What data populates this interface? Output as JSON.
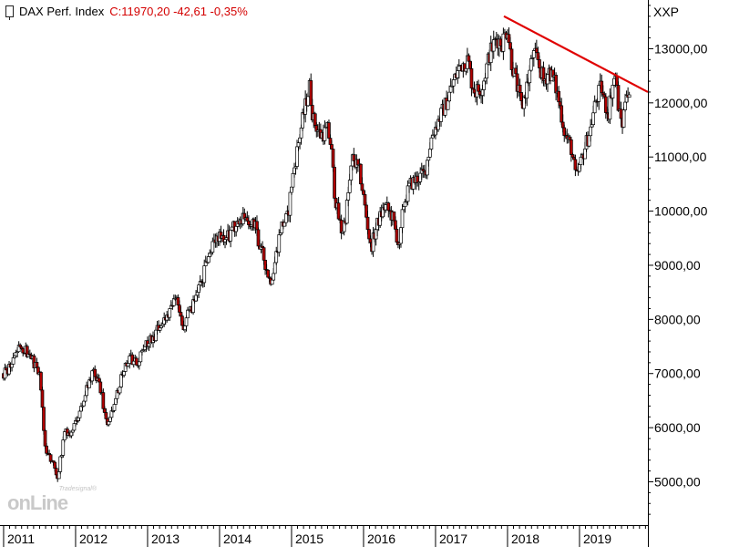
{
  "header": {
    "instrument": "DAX Perf. Index",
    "quote": "C:11970,20 -42,61 -0,35%"
  },
  "axis_unit": "XXP",
  "watermark": {
    "small": "Tradesignal®",
    "big": "onLine"
  },
  "colors": {
    "up_fill": "#ffffff",
    "down_fill": "#b00000",
    "wick": "#000000",
    "trendline": "#e00000",
    "quote_text": "#d40000"
  },
  "chart_data": {
    "type": "candlestick",
    "title": "DAX Perf. Index",
    "x_tick_labels": [
      "2011",
      "2012",
      "2013",
      "2014",
      "2015",
      "2016",
      "2017",
      "2018",
      "2019"
    ],
    "y_tick_labels": [
      "5000,00",
      "6000,00",
      "7000,00",
      "8000,00",
      "9000,00",
      "10000,00",
      "11000,00",
      "12000,00",
      "13000,00"
    ],
    "y_ticks": [
      5000,
      6000,
      7000,
      8000,
      9000,
      10000,
      11000,
      12000,
      13000
    ],
    "xlim": [
      2010.95,
      2019.95
    ],
    "ylim": [
      4200,
      13900
    ],
    "last_close": 11970.2,
    "change": -42.61,
    "change_pct": -0.35,
    "price_path": [
      [
        2011.0,
        7000
      ],
      [
        2011.1,
        7150
      ],
      [
        2011.2,
        7450
      ],
      [
        2011.3,
        7450
      ],
      [
        2011.4,
        7250
      ],
      [
        2011.5,
        7000
      ],
      [
        2011.58,
        5600
      ],
      [
        2011.7,
        5300
      ],
      [
        2011.75,
        5100
      ],
      [
        2011.85,
        5900
      ],
      [
        2011.95,
        5900
      ],
      [
        2012.1,
        6500
      ],
      [
        2012.2,
        6900
      ],
      [
        2012.25,
        7100
      ],
      [
        2012.35,
        6700
      ],
      [
        2012.4,
        6300
      ],
      [
        2012.45,
        6050
      ],
      [
        2012.55,
        6500
      ],
      [
        2012.65,
        7000
      ],
      [
        2012.75,
        7300
      ],
      [
        2012.85,
        7200
      ],
      [
        2013.0,
        7600
      ],
      [
        2013.1,
        7700
      ],
      [
        2013.2,
        8000
      ],
      [
        2013.3,
        8100
      ],
      [
        2013.4,
        8400
      ],
      [
        2013.45,
        8150
      ],
      [
        2013.5,
        7800
      ],
      [
        2013.55,
        8100
      ],
      [
        2013.65,
        8300
      ],
      [
        2013.75,
        8700
      ],
      [
        2013.85,
        9200
      ],
      [
        2013.95,
        9500
      ],
      [
        2014.0,
        9500
      ],
      [
        2014.1,
        9500
      ],
      [
        2014.2,
        9700
      ],
      [
        2014.35,
        9900
      ],
      [
        2014.5,
        9700
      ],
      [
        2014.55,
        9300
      ],
      [
        2014.6,
        9200
      ],
      [
        2014.7,
        8700
      ],
      [
        2014.75,
        8900
      ],
      [
        2014.85,
        9700
      ],
      [
        2014.95,
        9900
      ],
      [
        2015.0,
        10500
      ],
      [
        2015.1,
        11300
      ],
      [
        2015.2,
        12000
      ],
      [
        2015.25,
        12300
      ],
      [
        2015.3,
        11700
      ],
      [
        2015.4,
        11400
      ],
      [
        2015.5,
        11500
      ],
      [
        2015.55,
        11200
      ],
      [
        2015.6,
        10300
      ],
      [
        2015.65,
        9900
      ],
      [
        2015.7,
        9600
      ],
      [
        2015.75,
        9900
      ],
      [
        2015.85,
        11000
      ],
      [
        2015.95,
        10700
      ],
      [
        2016.05,
        9800
      ],
      [
        2016.1,
        9300
      ],
      [
        2016.2,
        9800
      ],
      [
        2016.3,
        10100
      ],
      [
        2016.4,
        9900
      ],
      [
        2016.45,
        9600
      ],
      [
        2016.5,
        9300
      ],
      [
        2016.55,
        10100
      ],
      [
        2016.65,
        10500
      ],
      [
        2016.75,
        10600
      ],
      [
        2016.85,
        10700
      ],
      [
        2016.95,
        11400
      ],
      [
        2017.05,
        11700
      ],
      [
        2017.15,
        12000
      ],
      [
        2017.25,
        12400
      ],
      [
        2017.35,
        12700
      ],
      [
        2017.45,
        12800
      ],
      [
        2017.5,
        12400
      ],
      [
        2017.55,
        12200
      ],
      [
        2017.65,
        12300
      ],
      [
        2017.75,
        12900
      ],
      [
        2017.85,
        13200
      ],
      [
        2017.92,
        13100
      ],
      [
        2018.0,
        13400
      ],
      [
        2018.05,
        12800
      ],
      [
        2018.15,
        12200
      ],
      [
        2018.2,
        11900
      ],
      [
        2018.3,
        12500
      ],
      [
        2018.35,
        12900
      ],
      [
        2018.42,
        12800
      ],
      [
        2018.5,
        12400
      ],
      [
        2018.58,
        12600
      ],
      [
        2018.65,
        12400
      ],
      [
        2018.72,
        12000
      ],
      [
        2018.8,
        11400
      ],
      [
        2018.88,
        11200
      ],
      [
        2018.95,
        10600
      ],
      [
        2019.0,
        10800
      ],
      [
        2019.08,
        11200
      ],
      [
        2019.15,
        11500
      ],
      [
        2019.22,
        12000
      ],
      [
        2019.3,
        12300
      ],
      [
        2019.35,
        12000
      ],
      [
        2019.4,
        11800
      ],
      [
        2019.45,
        12300
      ],
      [
        2019.5,
        12500
      ],
      [
        2019.55,
        11800
      ],
      [
        2019.6,
        11600
      ],
      [
        2019.65,
        12300
      ],
      [
        2019.7,
        12000
      ]
    ],
    "trendline": {
      "start": [
        2017.95,
        13600
      ],
      "end": [
        2019.95,
        12200
      ]
    }
  }
}
